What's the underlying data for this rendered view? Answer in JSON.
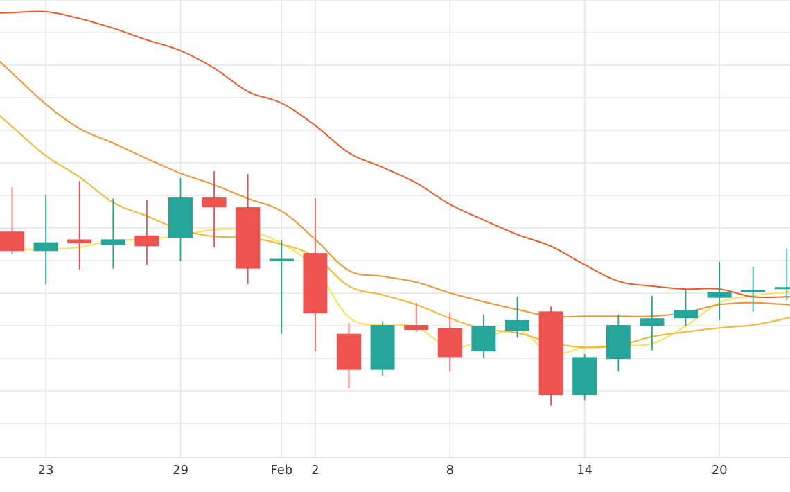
{
  "chart_data": {
    "type": "candlestick",
    "x_tick_labels": [
      {
        "slot": 1,
        "label": "23"
      },
      {
        "slot": 5,
        "label": "29"
      },
      {
        "slot": 8,
        "label": "Feb"
      },
      {
        "slot": 9,
        "label": "2"
      },
      {
        "slot": 13,
        "label": "8"
      },
      {
        "slot": 17,
        "label": "14"
      },
      {
        "slot": 21,
        "label": "20"
      }
    ],
    "candles": [
      {
        "slot": 0,
        "open": 46.4,
        "high": 55.5,
        "low": 41.8,
        "close": 42.4
      },
      {
        "slot": 1,
        "open": 42.4,
        "high": 54.0,
        "low": 35.6,
        "close": 44.2
      },
      {
        "slot": 2,
        "open": 44.8,
        "high": 56.8,
        "low": 38.6,
        "close": 44.0
      },
      {
        "slot": 3,
        "open": 43.6,
        "high": 53.2,
        "low": 38.8,
        "close": 44.8
      },
      {
        "slot": 4,
        "open": 45.6,
        "high": 53.0,
        "low": 39.6,
        "close": 43.4
      },
      {
        "slot": 5,
        "open": 45.0,
        "high": 57.4,
        "low": 40.4,
        "close": 53.4
      },
      {
        "slot": 6,
        "open": 53.4,
        "high": 58.8,
        "low": 43.2,
        "close": 51.4
      },
      {
        "slot": 7,
        "open": 51.4,
        "high": 58.2,
        "low": 35.6,
        "close": 38.8
      },
      {
        "slot": 8,
        "open": 40.4,
        "high": 44.6,
        "low": 25.4,
        "close": 40.8
      },
      {
        "slot": 9,
        "open": 42.0,
        "high": 53.2,
        "low": 21.8,
        "close": 29.6
      },
      {
        "slot": 10,
        "open": 25.4,
        "high": 27.6,
        "low": 14.2,
        "close": 18.0
      },
      {
        "slot": 11,
        "open": 18.0,
        "high": 28.0,
        "low": 16.8,
        "close": 27.2
      },
      {
        "slot": 12,
        "open": 27.2,
        "high": 31.8,
        "low": 25.8,
        "close": 26.2
      },
      {
        "slot": 13,
        "open": 26.6,
        "high": 29.8,
        "low": 17.6,
        "close": 20.6
      },
      {
        "slot": 14,
        "open": 21.8,
        "high": 29.4,
        "low": 20.4,
        "close": 27.0
      },
      {
        "slot": 15,
        "open": 26.0,
        "high": 33.0,
        "low": 24.6,
        "close": 28.2
      },
      {
        "slot": 16,
        "open": 30.0,
        "high": 31.0,
        "low": 10.6,
        "close": 12.8
      },
      {
        "slot": 17,
        "open": 12.8,
        "high": 21.2,
        "low": 11.8,
        "close": 20.6
      },
      {
        "slot": 18,
        "open": 20.2,
        "high": 29.4,
        "low": 17.6,
        "close": 27.2
      },
      {
        "slot": 19,
        "open": 27.0,
        "high": 33.2,
        "low": 22.0,
        "close": 28.6
      },
      {
        "slot": 20,
        "open": 28.6,
        "high": 34.4,
        "low": 27.0,
        "close": 30.2
      },
      {
        "slot": 21,
        "open": 32.8,
        "high": 40.2,
        "low": 28.2,
        "close": 34.0
      },
      {
        "slot": 22,
        "open": 34.0,
        "high": 39.2,
        "low": 30.0,
        "close": 34.4
      },
      {
        "slot": 23,
        "open": 34.8,
        "high": 43.0,
        "low": 32.2,
        "close": 35.0
      }
    ],
    "moving_averages": [
      {
        "color": "#ffe14a",
        "values": [
          42.8,
          42.8,
          43.2,
          44.6,
          44.8,
          45.6,
          46.8,
          46.6,
          44.0,
          38.8,
          28.8,
          27.2,
          26.8,
          22.6,
          24.2,
          26.4,
          21.4,
          22.6,
          23.0,
          23.4,
          27.0,
          31.8,
          33.2,
          34.0
        ]
      },
      {
        "color": "#f5b731",
        "values": [
          68.0,
          62.0,
          57.6,
          52.4,
          49.6,
          46.8,
          45.4,
          45.2,
          43.8,
          41.2,
          35.2,
          33.4,
          31.4,
          28.6,
          26.4,
          25.6,
          23.6,
          22.6,
          23.0,
          24.8,
          25.8,
          26.6,
          27.2,
          28.6
        ]
      },
      {
        "color": "#f3922e",
        "values": [
          79.0,
          72.6,
          67.6,
          64.6,
          61.4,
          58.4,
          56.0,
          53.2,
          50.6,
          44.8,
          38.4,
          37.2,
          36.0,
          33.8,
          32.0,
          30.4,
          29.0,
          29.0,
          29.0,
          29.0,
          29.8,
          31.4,
          31.8,
          31.4
        ]
      },
      {
        "color": "#ef5a2a",
        "values": [
          91.4,
          91.6,
          90.2,
          88.2,
          85.8,
          83.6,
          80.0,
          75.2,
          72.8,
          68.2,
          62.6,
          59.6,
          56.4,
          52.0,
          48.8,
          45.8,
          43.4,
          39.6,
          36.2,
          35.2,
          34.6,
          34.6,
          33.0,
          33.0
        ]
      }
    ],
    "colors": {
      "up": "#26a69a",
      "down": "#ef5350",
      "grid": "#e6e6e6"
    },
    "ylim": [
      0,
      94
    ],
    "grid": true,
    "legend": "none"
  }
}
